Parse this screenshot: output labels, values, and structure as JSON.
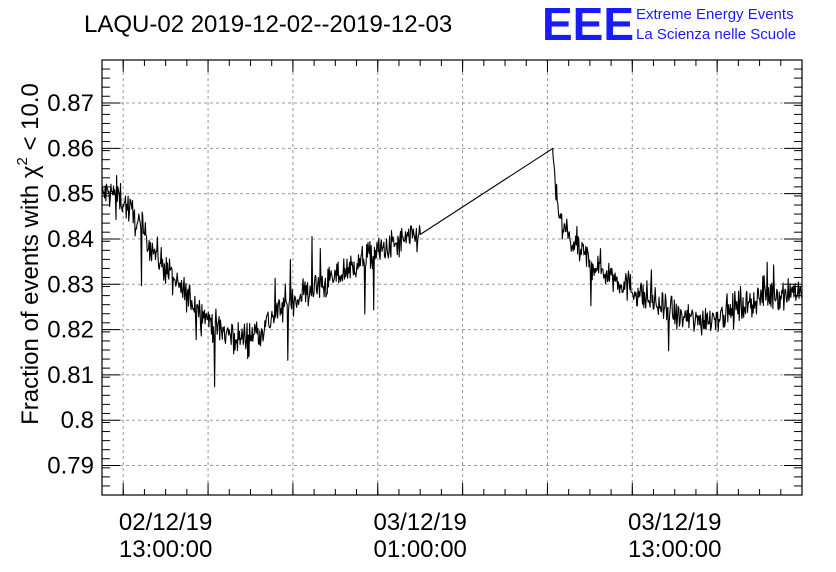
{
  "chart_data": {
    "type": "line",
    "title": "LAQU-02 2019-12-02--2019-12-03",
    "ylabel": "Fraction of events with χ² < 10.0",
    "ylabel_parts": {
      "pre": "Fraction of events with χ",
      "sup": "2",
      "post": " < 10.0"
    },
    "xlabel": "",
    "ylim": [
      0.7835,
      0.8795
    ],
    "xlim_hours": [
      -1.0,
      32.0
    ],
    "y_ticks": [
      0.79,
      0.8,
      0.81,
      0.82,
      0.83,
      0.84,
      0.85,
      0.86,
      0.87
    ],
    "y_tick_labels": [
      "0.79",
      "0.8",
      "0.81",
      "0.82",
      "0.83",
      "0.84",
      "0.85",
      "0.86",
      "0.87"
    ],
    "x_ticks": [
      {
        "date": "02/12/19",
        "time": "13:00:00"
      },
      {
        "date": "03/12/19",
        "time": "01:00:00"
      },
      {
        "date": "03/12/19",
        "time": "13:00:00"
      }
    ],
    "grid": true,
    "line_color": "#000000",
    "series": [
      {
        "name": "",
        "anchors": [
          {
            "x": "2019-12-02 10:00",
            "y": 0.85
          },
          {
            "x": "2019-12-02 10:45",
            "y": 0.85
          },
          {
            "x": "2019-12-02 11:30",
            "y": 0.845
          },
          {
            "x": "2019-12-02 12:30",
            "y": 0.837
          },
          {
            "x": "2019-12-02 13:30",
            "y": 0.83
          },
          {
            "x": "2019-12-02 14:30",
            "y": 0.825
          },
          {
            "x": "2019-12-02 15:30",
            "y": 0.82
          },
          {
            "x": "2019-12-02 16:30",
            "y": 0.818
          },
          {
            "x": "2019-12-02 17:30",
            "y": 0.82
          },
          {
            "x": "2019-12-02 18:30",
            "y": 0.825
          },
          {
            "x": "2019-12-02 19:30",
            "y": 0.828
          },
          {
            "x": "2019-12-02 20:30",
            "y": 0.83
          },
          {
            "x": "2019-12-02 21:30",
            "y": 0.833
          },
          {
            "x": "2019-12-02 22:30",
            "y": 0.836
          },
          {
            "x": "2019-12-02 23:30",
            "y": 0.838
          },
          {
            "x": "2019-12-03 00:30",
            "y": 0.84
          },
          {
            "x": "2019-12-03 01:00",
            "y": 0.841
          },
          {
            "x": "2019-12-03 07:15",
            "y": 0.86
          },
          {
            "x": "2019-12-03 07:30",
            "y": 0.845
          },
          {
            "x": "2019-12-03 08:00",
            "y": 0.84
          },
          {
            "x": "2019-12-03 09:00",
            "y": 0.835
          },
          {
            "x": "2019-12-03 10:00",
            "y": 0.832
          },
          {
            "x": "2019-12-03 11:00",
            "y": 0.829
          },
          {
            "x": "2019-12-03 12:00",
            "y": 0.826
          },
          {
            "x": "2019-12-03 13:00",
            "y": 0.823
          },
          {
            "x": "2019-12-03 14:00",
            "y": 0.822
          },
          {
            "x": "2019-12-03 15:00",
            "y": 0.823
          },
          {
            "x": "2019-12-03 16:00",
            "y": 0.825
          },
          {
            "x": "2019-12-03 17:00",
            "y": 0.827
          },
          {
            "x": "2019-12-03 18:00",
            "y": 0.828
          },
          {
            "x": "2019-12-03 19:00",
            "y": 0.829
          }
        ],
        "gap": {
          "from": "2019-12-03 01:00",
          "to": "2019-12-03 07:15"
        },
        "noise_amplitude": 0.006
      }
    ]
  },
  "logo": {
    "mark": "EEE",
    "line1": "Extreme Energy Events",
    "line2": "La Scienza nelle Scuole",
    "color": "#1a1aff"
  }
}
